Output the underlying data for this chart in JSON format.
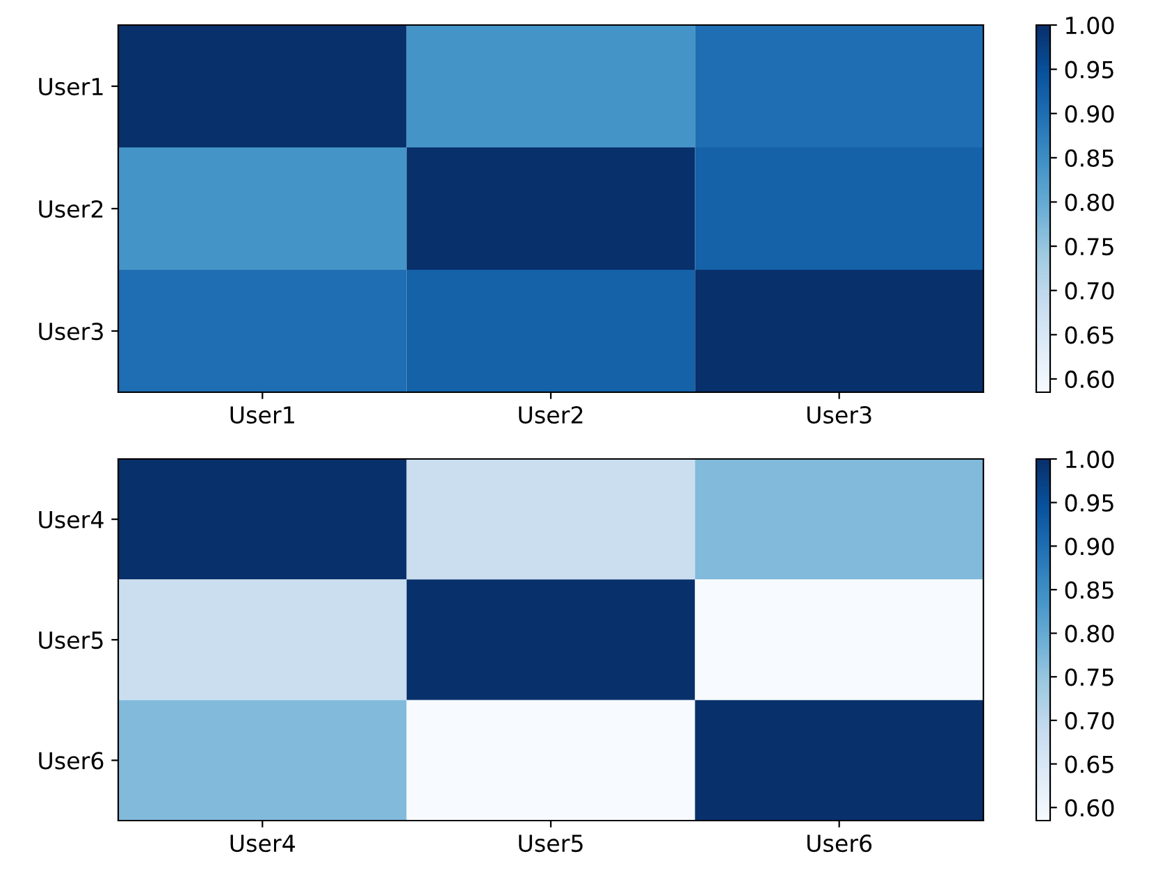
{
  "chart_data": [
    {
      "type": "heatmap",
      "categories": [
        "User1",
        "User2",
        "User3"
      ],
      "y_categories": [
        "User1",
        "User2",
        "User3"
      ],
      "cells": [
        [
          1.0,
          0.84,
          0.9
        ],
        [
          0.84,
          1.0,
          0.92
        ],
        [
          0.9,
          0.92,
          1.0
        ]
      ],
      "clim": [
        0.585,
        1.0
      ],
      "cticks": [
        {
          "value": 0.6,
          "label": "0.60"
        },
        {
          "value": 0.65,
          "label": "0.65"
        },
        {
          "value": 0.7,
          "label": "0.70"
        },
        {
          "value": 0.75,
          "label": "0.75"
        },
        {
          "value": 0.8,
          "label": "0.80"
        },
        {
          "value": 0.85,
          "label": "0.85"
        },
        {
          "value": 0.9,
          "label": "0.90"
        },
        {
          "value": 0.95,
          "label": "0.95"
        },
        {
          "value": 1.0,
          "label": "1.00"
        }
      ]
    },
    {
      "type": "heatmap",
      "categories": [
        "User4",
        "User5",
        "User6"
      ],
      "y_categories": [
        "User4",
        "User5",
        "User6"
      ],
      "cells": [
        [
          1.0,
          0.68,
          0.77
        ],
        [
          0.68,
          1.0,
          0.585
        ],
        [
          0.77,
          0.585,
          1.0
        ]
      ],
      "clim": [
        0.585,
        1.0
      ],
      "cticks": [
        {
          "value": 0.6,
          "label": "0.60"
        },
        {
          "value": 0.65,
          "label": "0.65"
        },
        {
          "value": 0.7,
          "label": "0.70"
        },
        {
          "value": 0.75,
          "label": "0.75"
        },
        {
          "value": 0.8,
          "label": "0.80"
        },
        {
          "value": 0.85,
          "label": "0.85"
        },
        {
          "value": 0.9,
          "label": "0.90"
        },
        {
          "value": 0.95,
          "label": "0.95"
        },
        {
          "value": 1.0,
          "label": "1.00"
        }
      ]
    }
  ]
}
